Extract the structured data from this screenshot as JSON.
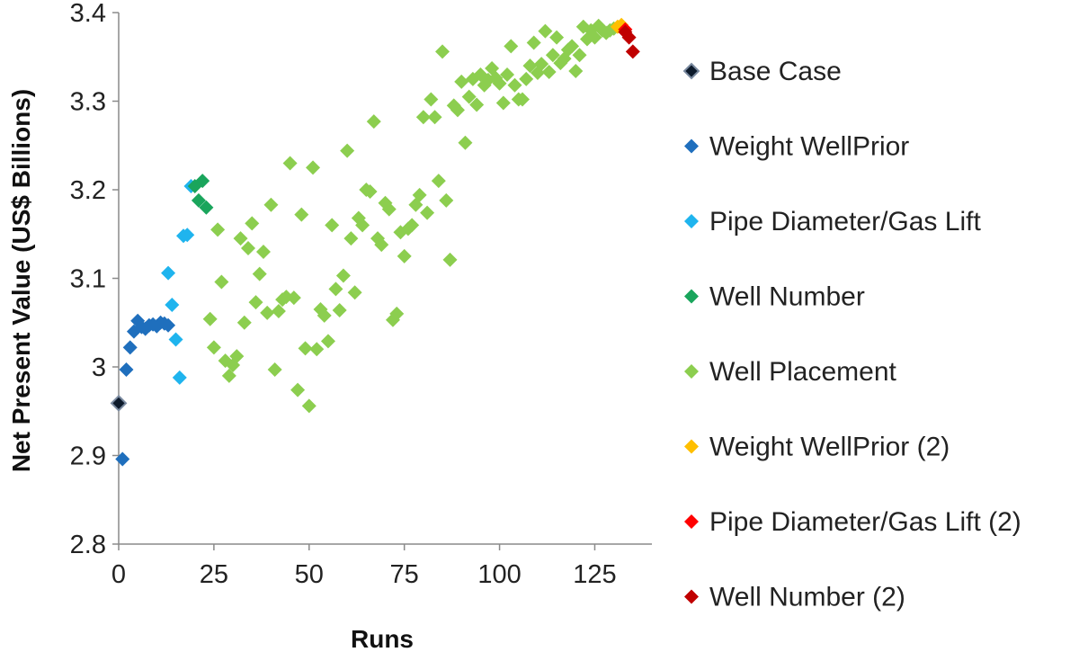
{
  "chart_data": {
    "type": "scatter",
    "title": "",
    "xlabel": "Runs",
    "ylabel": "Net Present Value (US$ Billions)",
    "xlim": [
      0,
      140
    ],
    "ylim": [
      2.8,
      3.4
    ],
    "xticks": [
      "0",
      "25",
      "50",
      "75",
      "100",
      "125"
    ],
    "yticks": [
      "2.8",
      "2.9",
      "3",
      "3.1",
      "3.2",
      "3.3",
      "3.4"
    ],
    "grid": false,
    "legend_position": "right",
    "series": [
      {
        "name": "Base Case",
        "color": "#0d1a2b",
        "points": [
          [
            0,
            2.959
          ]
        ]
      },
      {
        "name": "Weight WellPrior",
        "color": "#1f6fbd",
        "points": [
          [
            1,
            2.896
          ],
          [
            2,
            2.997
          ],
          [
            3,
            3.022
          ],
          [
            4,
            3.04
          ],
          [
            5,
            3.052
          ],
          [
            6,
            3.045
          ],
          [
            7,
            3.043
          ],
          [
            8,
            3.047
          ],
          [
            9,
            3.048
          ],
          [
            10,
            3.046
          ],
          [
            11,
            3.05
          ],
          [
            12,
            3.049
          ],
          [
            13,
            3.047
          ]
        ]
      },
      {
        "name": "Pipe Diameter/Gas Lift",
        "color": "#1fb4ee",
        "points": [
          [
            13,
            3.106
          ],
          [
            14,
            3.07
          ],
          [
            15,
            3.031
          ],
          [
            16,
            2.988
          ],
          [
            17,
            3.148
          ],
          [
            18,
            3.149
          ],
          [
            19,
            3.204
          ]
        ]
      },
      {
        "name": "Well Number",
        "color": "#1aa55c",
        "points": [
          [
            20,
            3.204
          ],
          [
            21,
            3.188
          ],
          [
            22,
            3.21
          ],
          [
            23,
            3.18
          ]
        ]
      },
      {
        "name": "Well Placement",
        "color": "#8cce4f",
        "points": [
          [
            24,
            3.054
          ],
          [
            25,
            3.022
          ],
          [
            26,
            3.155
          ],
          [
            27,
            3.096
          ],
          [
            28,
            3.007
          ],
          [
            29,
            2.99
          ],
          [
            30,
            3.002
          ],
          [
            31,
            3.012
          ],
          [
            32,
            3.145
          ],
          [
            33,
            3.05
          ],
          [
            34,
            3.134
          ],
          [
            35,
            3.162
          ],
          [
            36,
            3.073
          ],
          [
            37,
            3.105
          ],
          [
            38,
            3.13
          ],
          [
            39,
            3.061
          ],
          [
            40,
            3.183
          ],
          [
            41,
            2.997
          ],
          [
            42,
            3.063
          ],
          [
            43,
            3.076
          ],
          [
            44,
            3.079
          ],
          [
            45,
            3.23
          ],
          [
            46,
            3.078
          ],
          [
            47,
            2.974
          ],
          [
            48,
            3.172
          ],
          [
            49,
            3.021
          ],
          [
            50,
            2.956
          ],
          [
            51,
            3.225
          ],
          [
            52,
            3.02
          ],
          [
            53,
            3.065
          ],
          [
            54,
            3.058
          ],
          [
            55,
            3.029
          ],
          [
            56,
            3.16
          ],
          [
            57,
            3.088
          ],
          [
            58,
            3.064
          ],
          [
            59,
            3.103
          ],
          [
            60,
            3.244
          ],
          [
            61,
            3.145
          ],
          [
            62,
            3.084
          ],
          [
            63,
            3.168
          ],
          [
            64,
            3.16
          ],
          [
            65,
            3.2
          ],
          [
            66,
            3.198
          ],
          [
            67,
            3.277
          ],
          [
            68,
            3.145
          ],
          [
            69,
            3.138
          ],
          [
            70,
            3.185
          ],
          [
            71,
            3.178
          ],
          [
            72,
            3.053
          ],
          [
            73,
            3.06
          ],
          [
            74,
            3.152
          ],
          [
            75,
            3.125
          ],
          [
            76,
            3.156
          ],
          [
            77,
            3.16
          ],
          [
            78,
            3.183
          ],
          [
            79,
            3.194
          ],
          [
            80,
            3.282
          ],
          [
            81,
            3.174
          ],
          [
            82,
            3.302
          ],
          [
            83,
            3.282
          ],
          [
            84,
            3.21
          ],
          [
            85,
            3.356
          ],
          [
            86,
            3.188
          ],
          [
            87,
            3.121
          ],
          [
            88,
            3.295
          ],
          [
            89,
            3.29
          ],
          [
            90,
            3.322
          ],
          [
            91,
            3.253
          ],
          [
            92,
            3.305
          ],
          [
            93,
            3.325
          ],
          [
            94,
            3.296
          ],
          [
            95,
            3.33
          ],
          [
            96,
            3.318
          ],
          [
            97,
            3.324
          ],
          [
            98,
            3.337
          ],
          [
            99,
            3.326
          ],
          [
            100,
            3.32
          ],
          [
            101,
            3.298
          ],
          [
            102,
            3.33
          ],
          [
            103,
            3.362
          ],
          [
            104,
            3.318
          ],
          [
            105,
            3.302
          ],
          [
            106,
            3.302
          ],
          [
            107,
            3.325
          ],
          [
            108,
            3.34
          ],
          [
            109,
            3.366
          ],
          [
            110,
            3.332
          ],
          [
            111,
            3.342
          ],
          [
            112,
            3.379
          ],
          [
            113,
            3.333
          ],
          [
            114,
            3.352
          ],
          [
            115,
            3.372
          ],
          [
            116,
            3.343
          ],
          [
            117,
            3.348
          ],
          [
            118,
            3.358
          ],
          [
            119,
            3.362
          ],
          [
            120,
            3.334
          ],
          [
            121,
            3.352
          ],
          [
            122,
            3.384
          ],
          [
            123,
            3.37
          ],
          [
            124,
            3.38
          ],
          [
            125,
            3.372
          ],
          [
            126,
            3.385
          ],
          [
            127,
            3.38
          ],
          [
            128,
            3.377
          ],
          [
            129,
            3.38
          ],
          [
            130,
            3.382
          ]
        ]
      },
      {
        "name": "Weight WellPrior (2)",
        "color": "#ffbf00",
        "points": [
          [
            131,
            3.384
          ],
          [
            132,
            3.386
          ]
        ]
      },
      {
        "name": "Pipe Diameter/Gas Lift (2)",
        "color": "#ff0000",
        "points": [
          [
            133,
            3.381
          ]
        ]
      },
      {
        "name": "Well Number (2)",
        "color": "#c00000",
        "points": [
          [
            133,
            3.378
          ],
          [
            134,
            3.372
          ],
          [
            135,
            3.356
          ]
        ]
      }
    ]
  }
}
